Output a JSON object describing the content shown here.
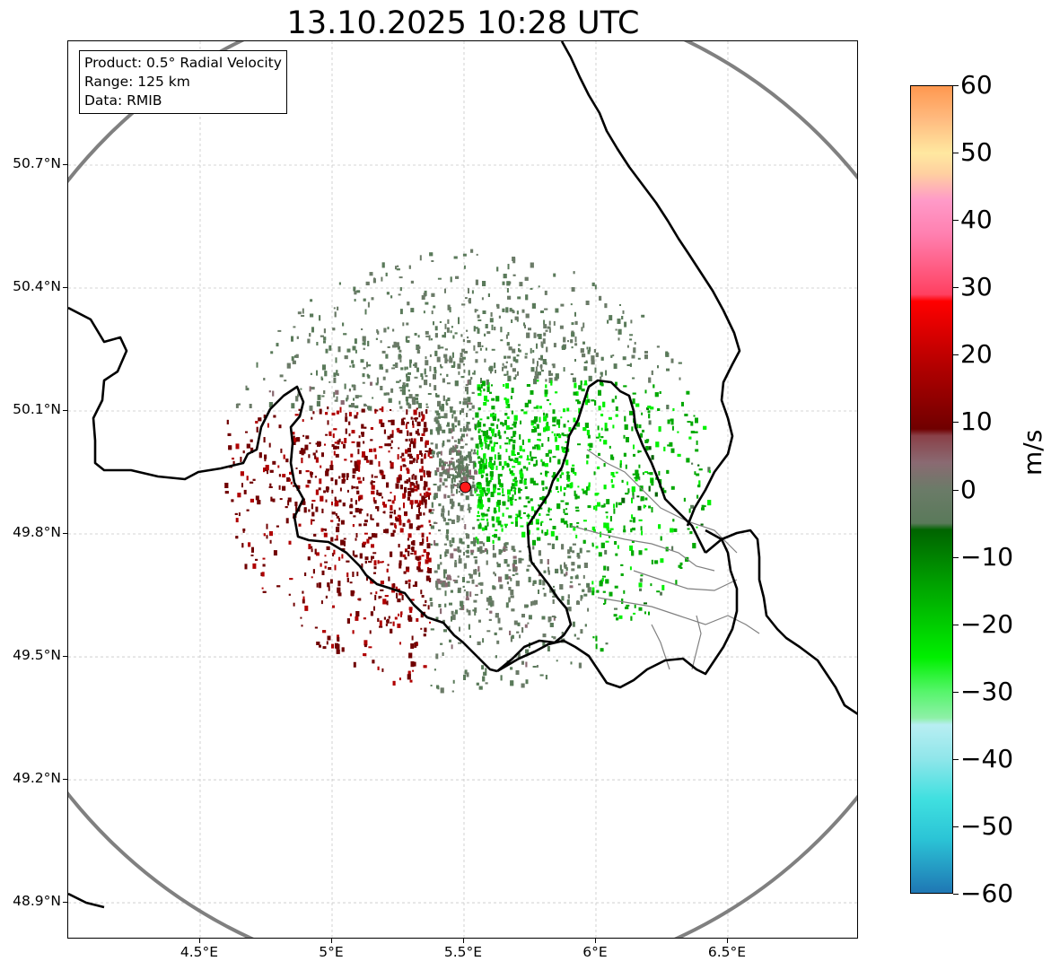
{
  "title": "13.10.2025 10:28 UTC",
  "info_box": {
    "product": "Product: 0.5° Radial Velocity",
    "range": "Range: 125 km",
    "data_source": "Data: RMIB"
  },
  "map": {
    "lon_range": [
      4.0,
      7.0
    ],
    "lat_range": [
      48.8,
      51.0
    ],
    "radar_site": {
      "lon": 5.505,
      "lat": 49.914,
      "color": "#ff1a1a"
    },
    "range_ring_color": "#808080",
    "border_color": "#000000",
    "admin_border_color": "#808080",
    "gridline_color": "#c8c8c8"
  },
  "axes": {
    "lat_ticks": [
      {
        "value": 50.7,
        "label": "50.7°N"
      },
      {
        "value": 50.4,
        "label": "50.4°N"
      },
      {
        "value": 50.1,
        "label": "50.1°N"
      },
      {
        "value": 49.8,
        "label": "49.8°N"
      },
      {
        "value": 49.5,
        "label": "49.5°N"
      },
      {
        "value": 49.2,
        "label": "49.2°N"
      },
      {
        "value": 48.9,
        "label": "48.9°N"
      }
    ],
    "lon_ticks": [
      {
        "value": 4.5,
        "label": "4.5°E"
      },
      {
        "value": 5.0,
        "label": "5°E"
      },
      {
        "value": 5.5,
        "label": "5.5°E"
      },
      {
        "value": 6.0,
        "label": "6°E"
      },
      {
        "value": 6.5,
        "label": "6.5°E"
      }
    ]
  },
  "colorbar": {
    "unit_label": "m/s",
    "range": [
      -60,
      60
    ],
    "ticks": [
      {
        "value": 60,
        "label": "60"
      },
      {
        "value": 50,
        "label": "50"
      },
      {
        "value": 40,
        "label": "40"
      },
      {
        "value": 30,
        "label": "30"
      },
      {
        "value": 20,
        "label": "20"
      },
      {
        "value": 10,
        "label": "10"
      },
      {
        "value": 0,
        "label": "0"
      },
      {
        "value": -10,
        "label": "−10"
      },
      {
        "value": -20,
        "label": "−20"
      },
      {
        "value": -30,
        "label": "−30"
      },
      {
        "value": -40,
        "label": "−40"
      },
      {
        "value": -50,
        "label": "−50"
      },
      {
        "value": -60,
        "label": "−60"
      }
    ],
    "stops": [
      {
        "v": -60,
        "c": "#1f77b4"
      },
      {
        "v": -52,
        "c": "#2bc4d6"
      },
      {
        "v": -46,
        "c": "#40e0e0"
      },
      {
        "v": -40,
        "c": "#90e6ea"
      },
      {
        "v": -35,
        "c": "#b8eef2"
      },
      {
        "v": -34,
        "c": "#8ef0a8"
      },
      {
        "v": -30,
        "c": "#55f56a"
      },
      {
        "v": -25,
        "c": "#00f000"
      },
      {
        "v": -15,
        "c": "#00a800"
      },
      {
        "v": -6,
        "c": "#006400"
      },
      {
        "v": -5,
        "c": "#5a7a5a"
      },
      {
        "v": 0,
        "c": "#6b7b68"
      },
      {
        "v": 4,
        "c": "#8a6a72"
      },
      {
        "v": 8,
        "c": "#8a4048"
      },
      {
        "v": 9,
        "c": "#700000"
      },
      {
        "v": 18,
        "c": "#b00000"
      },
      {
        "v": 28,
        "c": "#ff0000"
      },
      {
        "v": 29,
        "c": "#ff4060"
      },
      {
        "v": 38,
        "c": "#ff80b0"
      },
      {
        "v": 43,
        "c": "#ff9ac8"
      },
      {
        "v": 47,
        "c": "#ffd0a0"
      },
      {
        "v": 50,
        "c": "#ffe8a0"
      },
      {
        "v": 55,
        "c": "#ffbb80"
      },
      {
        "v": 60,
        "c": "#ff9850"
      }
    ]
  }
}
